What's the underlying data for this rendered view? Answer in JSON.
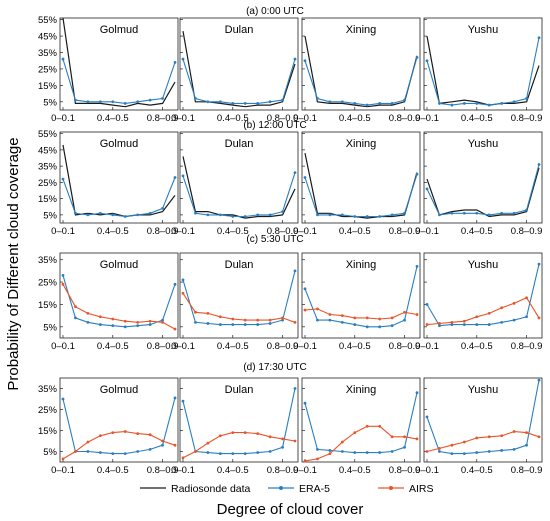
{
  "figure": {
    "ylabel": "Probability of Different  cloud coverage",
    "xlabel": "Degree of cloud cover",
    "legend": [
      {
        "name": "Radiosonde data",
        "color": "#1a1a1a",
        "marker": "none"
      },
      {
        "name": "ERA-5",
        "color": "#2a7fc0",
        "marker": "dot"
      },
      {
        "name": "AIRS",
        "color": "#e8552a",
        "marker": "dot"
      }
    ]
  },
  "chart_data": [
    {
      "type": "line",
      "title": "(a) 0:00 UTC",
      "x_ticks": [
        "0–0.1",
        "0.4–0.5",
        "0.8–0.9"
      ],
      "y_ticks": [
        "5%",
        "15%",
        "25%",
        "35%",
        "45%",
        "55%"
      ],
      "ylim": [
        0,
        56
      ],
      "stations": [
        {
          "name": "Golmud",
          "series": [
            {
              "name": "Radiosonde data",
              "color": "#1a1a1a",
              "values": [
                56,
                4,
                4,
                4,
                3,
                2,
                4,
                3,
                4,
                17
              ]
            },
            {
              "name": "ERA-5",
              "color": "#2a7fc0",
              "values": [
                31,
                6,
                5,
                5,
                5,
                4,
                5,
                6,
                7,
                29
              ]
            }
          ]
        },
        {
          "name": "Dulan",
          "series": [
            {
              "name": "Radiosonde data",
              "color": "#1a1a1a",
              "values": [
                48,
                5,
                5,
                4,
                3,
                2,
                3,
                3,
                5,
                28
              ]
            },
            {
              "name": "ERA-5",
              "color": "#2a7fc0",
              "values": [
                31,
                7,
                5,
                5,
                4,
                4,
                4,
                5,
                6,
                31
              ]
            }
          ]
        },
        {
          "name": "Xining",
          "series": [
            {
              "name": "Radiosonde data",
              "color": "#1a1a1a",
              "values": [
                45,
                5,
                4,
                4,
                3,
                2,
                3,
                3,
                5,
                33
              ]
            },
            {
              "name": "ERA-5",
              "color": "#2a7fc0",
              "values": [
                30,
                7,
                5,
                5,
                4,
                3,
                4,
                4,
                6,
                32
              ]
            }
          ]
        },
        {
          "name": "Yushu",
          "series": [
            {
              "name": "Radiosonde data",
              "color": "#1a1a1a",
              "values": [
                45,
                4,
                5,
                6,
                5,
                3,
                4,
                4,
                5,
                27
              ]
            },
            {
              "name": "ERA-5",
              "color": "#2a7fc0",
              "values": [
                30,
                4,
                3,
                4,
                4,
                3,
                4,
                5,
                7,
                44
              ]
            }
          ]
        }
      ]
    },
    {
      "type": "line",
      "title": "(b) 12:00 UTC",
      "x_ticks": [
        "0–0.1",
        "0.4–0.5",
        "0.8–0.9"
      ],
      "y_ticks": [
        "5%",
        "15%",
        "25%",
        "35%",
        "45%",
        "55%"
      ],
      "ylim": [
        0,
        56
      ],
      "stations": [
        {
          "name": "Golmud",
          "series": [
            {
              "name": "Radiosonde data",
              "color": "#1a1a1a",
              "values": [
                48,
                5,
                6,
                5,
                6,
                4,
                5,
                5,
                7,
                17
              ]
            },
            {
              "name": "ERA-5",
              "color": "#2a7fc0",
              "values": [
                27,
                6,
                5,
                6,
                5,
                4,
                5,
                6,
                9,
                28
              ]
            }
          ]
        },
        {
          "name": "Dulan",
          "series": [
            {
              "name": "Radiosonde data",
              "color": "#1a1a1a",
              "values": [
                41,
                7,
                7,
                5,
                5,
                3,
                4,
                4,
                5,
                21
              ]
            },
            {
              "name": "ERA-5",
              "color": "#2a7fc0",
              "values": [
                29,
                6,
                5,
                5,
                4,
                4,
                5,
                5,
                7,
                31
              ]
            }
          ]
        },
        {
          "name": "Xining",
          "series": [
            {
              "name": "Radiosonde data",
              "color": "#1a1a1a",
              "values": [
                43,
                6,
                6,
                4,
                4,
                3,
                4,
                4,
                5,
                31
              ]
            },
            {
              "name": "ERA-5",
              "color": "#2a7fc0",
              "values": [
                28,
                5,
                5,
                5,
                4,
                4,
                4,
                5,
                6,
                30
              ]
            }
          ]
        },
        {
          "name": "Yushu",
          "series": [
            {
              "name": "Radiosonde data",
              "color": "#1a1a1a",
              "values": [
                27,
                5,
                7,
                8,
                8,
                4,
                5,
                5,
                7,
                34
              ]
            },
            {
              "name": "ERA-5",
              "color": "#2a7fc0",
              "values": [
                21,
                5,
                6,
                6,
                6,
                5,
                6,
                6,
                8,
                36
              ]
            }
          ]
        }
      ]
    },
    {
      "type": "line",
      "title": "(c) 5:30 UTC",
      "x_ticks": [
        "0–0.1",
        "0.4–0.5",
        "0.8–0.9"
      ],
      "y_ticks": [
        "5%",
        "15%",
        "25%",
        "35%"
      ],
      "ylim": [
        0,
        38
      ],
      "stations": [
        {
          "name": "Golmud",
          "series": [
            {
              "name": "ERA-5",
              "color": "#2a7fc0",
              "values": [
                28,
                9,
                7,
                6,
                5.5,
                5,
                5.5,
                6,
                8,
                24
              ]
            },
            {
              "name": "AIRS",
              "color": "#e8552a",
              "values": [
                24,
                14,
                11,
                9.5,
                8.5,
                7.5,
                7,
                7.5,
                7,
                4
              ]
            }
          ]
        },
        {
          "name": "Dulan",
          "series": [
            {
              "name": "ERA-5",
              "color": "#2a7fc0",
              "values": [
                26,
                7,
                6.5,
                6,
                6,
                6,
                6,
                6.5,
                8,
                30
              ]
            },
            {
              "name": "AIRS",
              "color": "#e8552a",
              "values": [
                20,
                11.5,
                11,
                9.5,
                8.5,
                8,
                8,
                8,
                9,
                7
              ]
            }
          ]
        },
        {
          "name": "Xining",
          "series": [
            {
              "name": "ERA-5",
              "color": "#2a7fc0",
              "values": [
                22,
                8,
                8,
                7,
                6,
                5,
                5,
                5.5,
                8,
                32
              ]
            },
            {
              "name": "AIRS",
              "color": "#e8552a",
              "values": [
                12.5,
                13,
                10.5,
                10,
                9,
                9,
                8.5,
                9,
                11.5,
                10.5
              ]
            }
          ]
        },
        {
          "name": "Yushu",
          "series": [
            {
              "name": "ERA-5",
              "color": "#2a7fc0",
              "values": [
                15,
                5.5,
                6,
                6,
                6,
                6,
                7,
                8,
                9.5,
                33
              ]
            },
            {
              "name": "AIRS",
              "color": "#e8552a",
              "values": [
                6,
                6.5,
                7,
                7.5,
                9.5,
                11,
                13.5,
                15.5,
                18,
                9
              ]
            }
          ]
        }
      ]
    },
    {
      "type": "line",
      "title": "(d) 17:30 UTC",
      "x_ticks": [
        "0–0.1",
        "0.4–0.5",
        "0.8–0.9"
      ],
      "y_ticks": [
        "5%",
        "15%",
        "25%",
        "35%"
      ],
      "ylim": [
        0,
        40
      ],
      "stations": [
        {
          "name": "Golmud",
          "series": [
            {
              "name": "ERA-5",
              "color": "#2a7fc0",
              "values": [
                30,
                5,
                5,
                4.5,
                4,
                4,
                5,
                6,
                8,
                30.5
              ]
            },
            {
              "name": "AIRS",
              "color": "#e8552a",
              "values": [
                1.5,
                5,
                9.5,
                12.5,
                14,
                14.5,
                13.5,
                13,
                10,
                8
              ]
            }
          ]
        },
        {
          "name": "Dulan",
          "series": [
            {
              "name": "ERA-5",
              "color": "#2a7fc0",
              "values": [
                29,
                5,
                4.5,
                4,
                4,
                4,
                4.5,
                5,
                7,
                35
              ]
            },
            {
              "name": "AIRS",
              "color": "#e8552a",
              "values": [
                2,
                5,
                9,
                12.5,
                14,
                14,
                13.5,
                12,
                11,
                10
              ]
            }
          ]
        },
        {
          "name": "Xining",
          "series": [
            {
              "name": "ERA-5",
              "color": "#2a7fc0",
              "values": [
                28,
                6,
                5.5,
                5,
                4.5,
                4.5,
                4.5,
                5,
                7,
                33
              ]
            },
            {
              "name": "AIRS",
              "color": "#e8552a",
              "values": [
                0.5,
                1.5,
                4,
                9.5,
                14,
                17,
                17,
                12,
                12,
                11
              ]
            }
          ]
        },
        {
          "name": "Yushu",
          "series": [
            {
              "name": "ERA-5",
              "color": "#2a7fc0",
              "values": [
                21.5,
                5,
                4,
                4,
                4.5,
                5,
                5.5,
                6,
                8,
                39
              ]
            },
            {
              "name": "AIRS",
              "color": "#e8552a",
              "values": [
                5,
                6.5,
                8,
                9.5,
                11.5,
                12,
                12.5,
                14.5,
                14,
                12
              ]
            }
          ]
        }
      ]
    }
  ]
}
